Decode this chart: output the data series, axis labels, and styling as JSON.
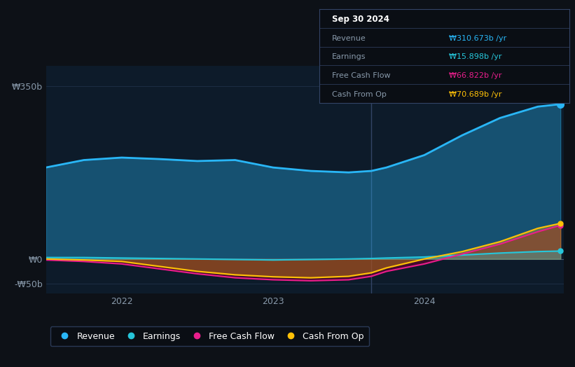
{
  "bg_color": "#0d1117",
  "plot_bg_color": "#0d1b2a",
  "ylim": [
    -70,
    390
  ],
  "xlim_start": 2021.5,
  "xlim_end": 2024.92,
  "xtick_labels": [
    "2022",
    "2023",
    "2024"
  ],
  "xtick_positions": [
    2022,
    2023,
    2024
  ],
  "past_line_x": 2023.65,
  "colors": {
    "revenue": "#29b6f6",
    "earnings": "#26c6da",
    "fcf": "#e91e8c",
    "cashop": "#ffc107"
  },
  "tooltip_title": "Sep 30 2024",
  "tooltip_revenue": "₩310.673b /yr",
  "tooltip_earnings": "₩15.898b /yr",
  "tooltip_fcf": "₩66.822b /yr",
  "tooltip_cashop": "₩70.689b /yr",
  "revenue_x": [
    2021.5,
    2021.75,
    2022.0,
    2022.25,
    2022.5,
    2022.75,
    2023.0,
    2023.25,
    2023.5,
    2023.65,
    2023.75,
    2024.0,
    2024.25,
    2024.5,
    2024.75,
    2024.9
  ],
  "revenue_y": [
    185,
    200,
    205,
    202,
    198,
    200,
    185,
    178,
    175,
    178,
    185,
    210,
    250,
    285,
    308,
    313
  ],
  "earnings_x": [
    2021.5,
    2021.75,
    2022.0,
    2022.25,
    2022.5,
    2022.75,
    2023.0,
    2023.25,
    2023.5,
    2023.65,
    2023.75,
    2024.0,
    2024.25,
    2024.5,
    2024.75,
    2024.9
  ],
  "earnings_y": [
    3,
    3,
    2,
    1,
    0,
    -1,
    -2,
    -1,
    0,
    1,
    2,
    4,
    8,
    12,
    15,
    16
  ],
  "fcf_x": [
    2021.5,
    2021.75,
    2022.0,
    2022.25,
    2022.5,
    2022.75,
    2023.0,
    2023.25,
    2023.5,
    2023.65,
    2023.75,
    2024.0,
    2024.25,
    2024.5,
    2024.75,
    2024.9
  ],
  "fcf_y": [
    -2,
    -5,
    -10,
    -20,
    -30,
    -38,
    -42,
    -44,
    -42,
    -35,
    -25,
    -10,
    10,
    30,
    55,
    68
  ],
  "cashop_x": [
    2021.5,
    2021.75,
    2022.0,
    2022.25,
    2022.5,
    2022.75,
    2023.0,
    2023.25,
    2023.5,
    2023.65,
    2023.75,
    2024.0,
    2024.25,
    2024.5,
    2024.75,
    2024.9
  ],
  "cashop_y": [
    0,
    -2,
    -5,
    -15,
    -25,
    -32,
    -36,
    -38,
    -35,
    -28,
    -18,
    0,
    15,
    35,
    62,
    72
  ]
}
